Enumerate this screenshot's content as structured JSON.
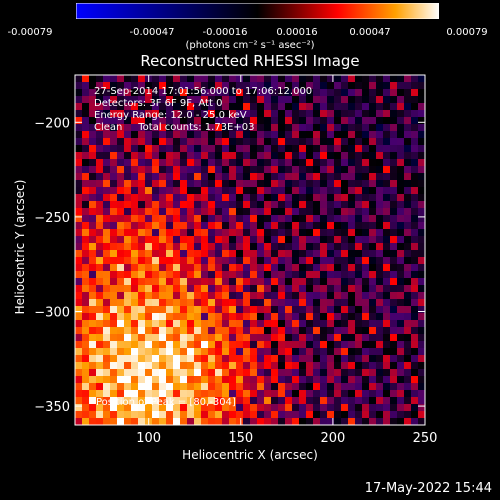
{
  "colorbar": {
    "tick_labels": [
      "-0.00079",
      "-0.00047",
      "-0.00016",
      "0.00016",
      "0.00047",
      "0.00079"
    ],
    "units": "(photons cm⁻² s⁻¹ asec⁻²)"
  },
  "title": "Reconstructed RHESSI Image",
  "info": {
    "time": "27-Sep-2014 17:01:56.000 to 17:06:12.000",
    "detectors": "Detectors: 3F 6F 9F, Att 0",
    "energy": "Energy Range: 12.0 - 25.0 keV",
    "clean": "Clean     Total counts: 1.73E+03",
    "peak": "Position of Peak = [80,-304]"
  },
  "footer": {
    "timestamp": "17-May-2022 15:44"
  },
  "chart_data": {
    "type": "heatmap",
    "title": "Reconstructed RHESSI Image",
    "xlabel": "Heliocentric X (arcsec)",
    "ylabel": "Heliocentric Y (arcsec)",
    "xlim": [
      60,
      250
    ],
    "ylim": [
      -360,
      -175
    ],
    "xticks": [
      100,
      150,
      200,
      250
    ],
    "yticks": [
      -200,
      -250,
      -300,
      -350
    ],
    "colorscale": {
      "min": -0.00079,
      "max": 0.00079,
      "colors": [
        "#0000ff",
        "#000000",
        "#ff0000",
        "#ffa000",
        "#ffffff"
      ]
    },
    "peak_position": [
      80,
      -304
    ]
  }
}
